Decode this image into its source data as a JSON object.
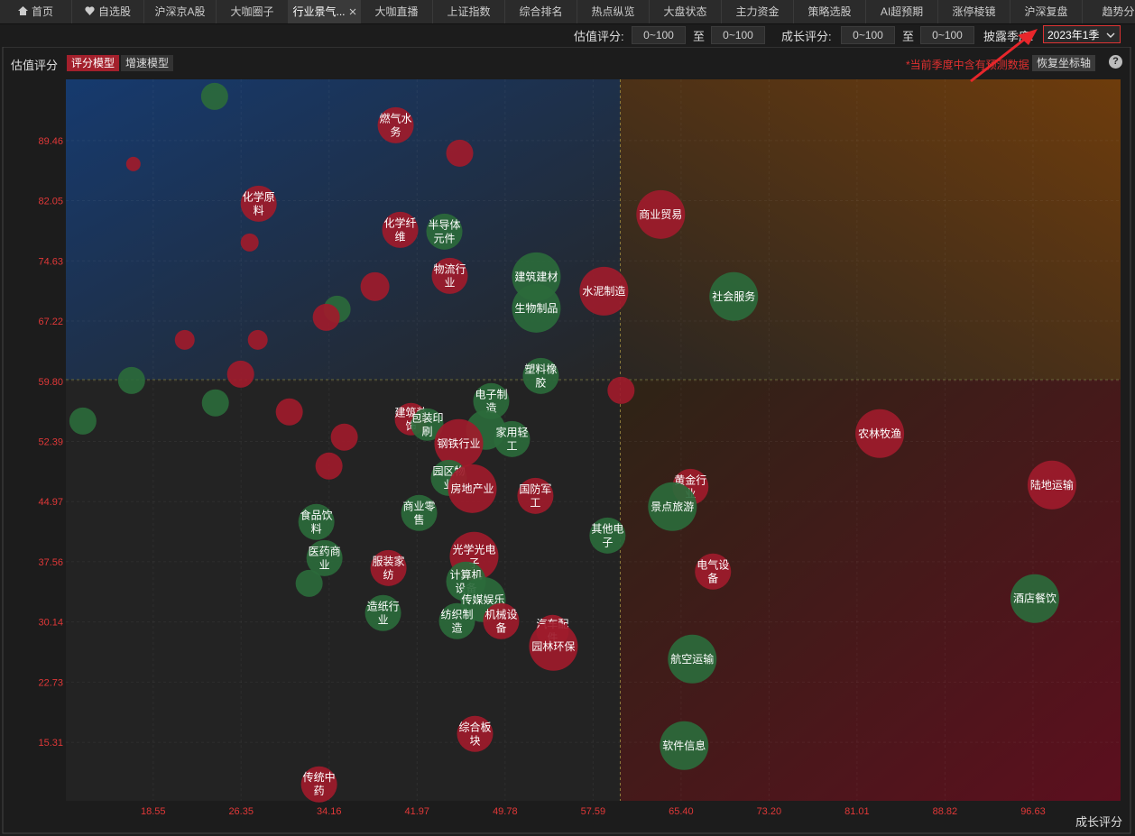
{
  "tabs": [
    "首页",
    "自选股",
    "沪深京A股",
    "大咖圈子",
    "行业景气...",
    "大咖直播",
    "上证指数",
    "综合排名",
    "热点纵览",
    "大盘状态",
    "主力资金",
    "策略选股",
    "AI超预期",
    "涨停棱镜",
    "沪深复盘",
    "趋势分"
  ],
  "toolbar": {
    "value_score_label": "估值评分:",
    "value_from": "0~100",
    "value_to_word": "至",
    "value_to": "0~100",
    "growth_score_label": "成长评分:",
    "growth_from": "0~100",
    "growth_to_word": "至",
    "growth_to": "0~100",
    "quarter_label": "披露季度:",
    "quarter": "2023年1季"
  },
  "panel": {
    "models": [
      "评分模型",
      "增速模型"
    ],
    "note": "*当前季度中含有预测数据",
    "reset_button": "恢复坐标轴",
    "help": "?"
  },
  "chart_data": {
    "type": "bubble",
    "y_label": "估值评分",
    "x_label": "成长评分",
    "xlim": [
      10.8,
      104.4
    ],
    "ylim": [
      8.1,
      97.0
    ],
    "xticks": [
      18.55,
      26.35,
      34.16,
      41.97,
      49.78,
      57.59,
      {
        "value": 65.4,
        "label": "65.40"
      },
      {
        "value": 73.2,
        "label": "73.20"
      },
      81.01,
      88.82,
      96.63
    ],
    "yticks": [
      89.46,
      82.05,
      74.63,
      67.22,
      {
        "value": 59.8,
        "label": "59.80"
      },
      52.39,
      44.97,
      37.56,
      30.14,
      22.73,
      15.31
    ],
    "grid": true,
    "xdivider": 60,
    "ydivider": 60,
    "points": [
      {
        "label": null,
        "x": 24.0,
        "y": 94.9,
        "size": 15,
        "color": "#2b6a3b"
      },
      {
        "label": "燃气水务",
        "x": 40.07,
        "y": 91.35,
        "size": 20,
        "color": "#9e1b2b"
      },
      {
        "label": null,
        "x": 45.75,
        "y": 87.9,
        "size": 15,
        "color": "#9e1b2b"
      },
      {
        "label": null,
        "x": 16.79,
        "y": 86.57,
        "size": 8,
        "color": "#9e1b2b"
      },
      {
        "label": "化学原料",
        "x": 27.91,
        "y": 81.68,
        "size": 20,
        "color": "#9e1b2b"
      },
      {
        "label": "化学纤维",
        "x": 40.47,
        "y": 78.46,
        "size": 20,
        "color": "#9e1b2b"
      },
      {
        "label": "半导体元件",
        "x": 44.39,
        "y": 78.24,
        "size": 20,
        "color": "#2b6a3b"
      },
      {
        "label": "商业贸易",
        "x": 63.59,
        "y": 80.35,
        "size": 27,
        "color": "#9e1b2b"
      },
      {
        "label": null,
        "x": 27.11,
        "y": 76.9,
        "size": 10,
        "color": "#9e1b2b"
      },
      {
        "label": "物流行业",
        "x": 44.87,
        "y": 72.79,
        "size": 20,
        "color": "#9e1b2b"
      },
      {
        "label": "建筑建材",
        "x": 52.55,
        "y": 72.68,
        "size": 27,
        "color": "#2b6a3b"
      },
      {
        "label": "生物制品",
        "x": 52.55,
        "y": 68.79,
        "size": 27,
        "color": "#2b6a3b"
      },
      {
        "label": "水泥制造",
        "x": 58.55,
        "y": 70.9,
        "size": 27,
        "color": "#9e1b2b"
      },
      {
        "label": "社会服务",
        "x": 70.07,
        "y": 70.24,
        "size": 27,
        "color": "#2b6a3b"
      },
      {
        "label": null,
        "x": 38.23,
        "y": 71.46,
        "size": 16,
        "color": "#9e1b2b"
      },
      {
        "label": null,
        "x": 34.87,
        "y": 68.68,
        "size": 15,
        "color": "#2b6a3b"
      },
      {
        "label": null,
        "x": 33.91,
        "y": 67.68,
        "size": 15,
        "color": "#9e1b2b"
      },
      {
        "label": null,
        "x": 21.35,
        "y": 64.9,
        "size": 11,
        "color": "#9e1b2b"
      },
      {
        "label": null,
        "x": 27.83,
        "y": 64.9,
        "size": 11,
        "color": "#9e1b2b"
      },
      {
        "label": null,
        "x": 26.31,
        "y": 60.68,
        "size": 15,
        "color": "#9e1b2b"
      },
      {
        "label": null,
        "x": 16.63,
        "y": 59.9,
        "size": 15,
        "color": "#2b6a3b"
      },
      {
        "label": "塑料橡胶",
        "x": 52.95,
        "y": 60.46,
        "size": 20,
        "color": "#2b6a3b"
      },
      {
        "label": null,
        "x": 60.07,
        "y": 58.68,
        "size": 15,
        "color": "#9e1b2b"
      },
      {
        "label": null,
        "x": 24.07,
        "y": 57.13,
        "size": 15,
        "color": "#2b6a3b"
      },
      {
        "label": null,
        "x": 12.31,
        "y": 54.9,
        "size": 15,
        "color": "#2b6a3b"
      },
      {
        "label": null,
        "x": 30.63,
        "y": 56.02,
        "size": 15,
        "color": "#9e1b2b"
      },
      {
        "label": "电子制造",
        "x": 48.55,
        "y": 57.35,
        "size": 20,
        "color": "#2b6a3b"
      },
      {
        "label": "建筑装饰",
        "x": 41.43,
        "y": 55.13,
        "size": 18,
        "color": "#9e1b2b"
      },
      {
        "label": "包装印刷",
        "x": 42.87,
        "y": 54.46,
        "size": 18,
        "color": "#2b6a3b"
      },
      {
        "label": null,
        "x": 48.07,
        "y": 53.8,
        "size": 22,
        "color": "#2b6a3b"
      },
      {
        "label": "家用轻工",
        "x": 50.39,
        "y": 52.68,
        "size": 20,
        "color": "#2b6a3b"
      },
      {
        "label": "钢铁行业",
        "x": 45.67,
        "y": 52.13,
        "size": 27,
        "color": "#9e1b2b"
      },
      {
        "label": null,
        "x": 35.51,
        "y": 52.91,
        "size": 15,
        "color": "#9e1b2b"
      },
      {
        "label": null,
        "x": 34.15,
        "y": 49.35,
        "size": 15,
        "color": "#9e1b2b"
      },
      {
        "label": "园区物业",
        "x": 44.79,
        "y": 47.9,
        "size": 20,
        "color": "#2b6a3b"
      },
      {
        "label": "房地产业",
        "x": 46.87,
        "y": 46.57,
        "size": 27,
        "color": "#9e1b2b"
      },
      {
        "label": "国防军工",
        "x": 52.47,
        "y": 45.68,
        "size": 20,
        "color": "#9e1b2b"
      },
      {
        "label": "黄金行业",
        "x": 66.23,
        "y": 46.79,
        "size": 20,
        "color": "#9e1b2b"
      },
      {
        "label": "景点旅游",
        "x": 64.63,
        "y": 44.35,
        "size": 27,
        "color": "#2b6a3b"
      },
      {
        "label": "农林牧渔",
        "x": 83.03,
        "y": 53.35,
        "size": 27,
        "color": "#9e1b2b"
      },
      {
        "label": "陆地运输",
        "x": 98.31,
        "y": 47.02,
        "size": 27,
        "color": "#9e1b2b"
      },
      {
        "label": "商业零售",
        "x": 42.15,
        "y": 43.57,
        "size": 20,
        "color": "#2b6a3b"
      },
      {
        "label": "食品饮料",
        "x": 33.03,
        "y": 42.46,
        "size": 20,
        "color": "#2b6a3b"
      },
      {
        "label": "其他电子",
        "x": 58.87,
        "y": 40.79,
        "size": 20,
        "color": "#2b6a3b"
      },
      {
        "label": "医药商业",
        "x": 33.75,
        "y": 38.01,
        "size": 20,
        "color": "#2b6a3b"
      },
      {
        "label": "光学光电子",
        "x": 47.03,
        "y": 38.24,
        "size": 27,
        "color": "#9e1b2b"
      },
      {
        "label": "服装家纺",
        "x": 39.43,
        "y": 36.79,
        "size": 20,
        "color": "#9e1b2b"
      },
      {
        "label": "电气设备",
        "x": 68.23,
        "y": 36.35,
        "size": 20,
        "color": "#9e1b2b"
      },
      {
        "label": "计算机设备",
        "x": 46.31,
        "y": 35.13,
        "size": 22,
        "color": "#2b6a3b"
      },
      {
        "label": null,
        "x": 32.39,
        "y": 34.9,
        "size": 15,
        "color": "#2b6a3b"
      },
      {
        "label": "传媒娱乐",
        "x": 47.83,
        "y": 32.9,
        "size": 25,
        "color": "#2b6a3b"
      },
      {
        "label": "造纸行业",
        "x": 38.95,
        "y": 31.24,
        "size": 20,
        "color": "#2b6a3b"
      },
      {
        "label": "纺织制造",
        "x": 45.51,
        "y": 30.24,
        "size": 20,
        "color": "#2b6a3b"
      },
      {
        "label": "机械设备",
        "x": 49.43,
        "y": 30.24,
        "size": 20,
        "color": "#9e1b2b"
      },
      {
        "label": "汽车配件",
        "x": 53.99,
        "y": 29.02,
        "size": 18,
        "color": "#9e1b2b"
      },
      {
        "label": "园林环保",
        "x": 54.07,
        "y": 27.13,
        "size": 27,
        "color": "#9e1b2b"
      },
      {
        "label": "酒店餐饮",
        "x": 96.79,
        "y": 33.02,
        "size": 27,
        "color": "#2b6a3b"
      },
      {
        "label": "航空运输",
        "x": 66.39,
        "y": 25.57,
        "size": 27,
        "color": "#2b6a3b"
      },
      {
        "label": "综合板块",
        "x": 47.11,
        "y": 16.35,
        "size": 20,
        "color": "#9e1b2b"
      },
      {
        "label": "软件信息",
        "x": 65.67,
        "y": 14.9,
        "size": 27,
        "color": "#2b6a3b"
      },
      {
        "label": "传统中药",
        "x": 33.27,
        "y": 10.13,
        "size": 20,
        "color": "#9e1b2b"
      }
    ]
  }
}
